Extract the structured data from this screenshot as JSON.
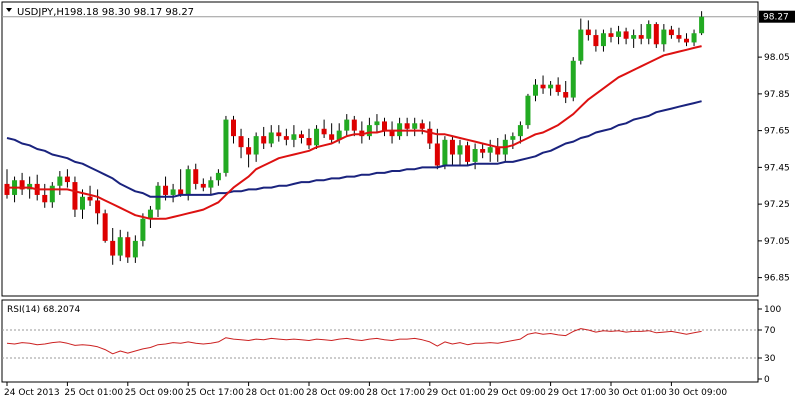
{
  "header": {
    "symbol": "USDJPY,H1",
    "ohlc": "98.18 98.30 98.17 98.27"
  },
  "price_panel": {
    "current_price_label": "98.27",
    "y_ticks": [
      "98.27",
      "98.05",
      "97.85",
      "97.65",
      "97.45",
      "97.25",
      "97.05",
      "96.85"
    ]
  },
  "rsi_panel": {
    "label": "RSI(14) 68.2074",
    "y_ticks": [
      "100",
      "70",
      "30",
      "0"
    ]
  },
  "x_ticks": [
    "24 Oct 2013",
    "25 Oct 01:00",
    "25 Oct 09:00",
    "25 Oct 17:00",
    "28 Oct 01:00",
    "28 Oct 09:00",
    "28 Oct 17:00",
    "29 Oct 01:00",
    "29 Oct 09:00",
    "29 Oct 17:00",
    "30 Oct 01:00",
    "30 Oct 09:00"
  ],
  "colors": {
    "up_candle": "#22aa22",
    "down_candle": "#dd0000",
    "ma_fast": "#dd1111",
    "ma_slow": "#1a237e",
    "rsi_line": "#cc2222",
    "frame": "#000000"
  },
  "chart_data": {
    "type": "candlestick",
    "ylim": [
      96.75,
      98.35
    ],
    "rsi_ylim": [
      0,
      100
    ],
    "candles": [
      [
        97.36,
        97.44,
        97.28,
        97.3
      ],
      [
        97.3,
        97.4,
        97.26,
        97.38
      ],
      [
        97.38,
        97.42,
        97.3,
        97.33
      ],
      [
        97.33,
        97.4,
        97.28,
        97.36
      ],
      [
        97.36,
        97.41,
        97.27,
        97.3
      ],
      [
        97.3,
        97.36,
        97.23,
        97.26
      ],
      [
        97.26,
        97.37,
        97.23,
        97.35
      ],
      [
        97.35,
        97.43,
        97.3,
        97.4
      ],
      [
        97.4,
        97.44,
        97.34,
        97.37
      ],
      [
        97.37,
        97.4,
        97.18,
        97.22
      ],
      [
        97.22,
        97.33,
        97.17,
        97.29
      ],
      [
        97.29,
        97.35,
        97.24,
        97.27
      ],
      [
        97.27,
        97.33,
        97.14,
        97.2
      ],
      [
        97.2,
        97.22,
        97.04,
        97.05
      ],
      [
        97.05,
        97.12,
        96.92,
        96.97
      ],
      [
        96.97,
        97.11,
        96.94,
        97.07
      ],
      [
        97.07,
        97.1,
        96.93,
        96.96
      ],
      [
        96.96,
        97.08,
        96.93,
        97.05
      ],
      [
        97.05,
        97.2,
        97.02,
        97.17
      ],
      [
        97.17,
        97.24,
        97.12,
        97.22
      ],
      [
        97.22,
        97.37,
        97.18,
        97.35
      ],
      [
        97.35,
        97.4,
        97.27,
        97.3
      ],
      [
        97.3,
        97.36,
        97.26,
        97.33
      ],
      [
        97.33,
        97.44,
        97.29,
        97.3
      ],
      [
        97.3,
        97.46,
        97.27,
        97.44
      ],
      [
        97.44,
        97.47,
        97.33,
        97.36
      ],
      [
        97.36,
        97.39,
        97.32,
        97.34
      ],
      [
        97.34,
        97.4,
        97.3,
        97.38
      ],
      [
        97.38,
        97.44,
        97.35,
        97.42
      ],
      [
        97.42,
        97.73,
        97.4,
        97.71
      ],
      [
        97.71,
        97.73,
        97.58,
        97.62
      ],
      [
        97.62,
        97.66,
        97.5,
        97.56
      ],
      [
        97.56,
        97.61,
        97.45,
        97.52
      ],
      [
        97.52,
        97.64,
        97.48,
        97.62
      ],
      [
        97.62,
        97.67,
        97.55,
        97.58
      ],
      [
        97.58,
        97.68,
        97.56,
        97.64
      ],
      [
        97.64,
        97.68,
        97.59,
        97.62
      ],
      [
        97.62,
        97.66,
        97.57,
        97.6
      ],
      [
        97.6,
        97.68,
        97.56,
        97.63
      ],
      [
        97.63,
        97.65,
        97.58,
        97.61
      ],
      [
        97.61,
        97.66,
        97.55,
        97.57
      ],
      [
        97.57,
        97.68,
        97.55,
        97.66
      ],
      [
        97.66,
        97.71,
        97.61,
        97.63
      ],
      [
        97.63,
        97.69,
        97.58,
        97.6
      ],
      [
        97.6,
        97.69,
        97.58,
        97.65
      ],
      [
        97.65,
        97.74,
        97.62,
        97.71
      ],
      [
        97.71,
        97.73,
        97.62,
        97.65
      ],
      [
        97.65,
        97.7,
        97.58,
        97.62
      ],
      [
        97.62,
        97.72,
        97.6,
        97.68
      ],
      [
        97.68,
        97.74,
        97.64,
        97.7
      ],
      [
        97.7,
        97.72,
        97.62,
        97.65
      ],
      [
        97.65,
        97.7,
        97.58,
        97.62
      ],
      [
        97.62,
        97.72,
        97.6,
        97.69
      ],
      [
        97.69,
        97.72,
        97.62,
        97.66
      ],
      [
        97.66,
        97.72,
        97.62,
        97.69
      ],
      [
        97.69,
        97.71,
        97.63,
        97.66
      ],
      [
        97.66,
        97.7,
        97.55,
        97.58
      ],
      [
        97.58,
        97.66,
        97.44,
        97.46
      ],
      [
        97.46,
        97.62,
        97.44,
        97.6
      ],
      [
        97.6,
        97.62,
        97.46,
        97.52
      ],
      [
        97.52,
        97.6,
        97.46,
        97.57
      ],
      [
        97.57,
        97.59,
        97.46,
        97.48
      ],
      [
        97.48,
        97.58,
        97.44,
        97.55
      ],
      [
        97.55,
        97.58,
        97.5,
        97.53
      ],
      [
        97.53,
        97.6,
        97.48,
        97.56
      ],
      [
        97.56,
        97.61,
        97.48,
        97.52
      ],
      [
        97.52,
        97.63,
        97.48,
        97.6
      ],
      [
        97.6,
        97.64,
        97.55,
        97.62
      ],
      [
        97.62,
        97.7,
        97.58,
        97.68
      ],
      [
        97.68,
        97.85,
        97.66,
        97.84
      ],
      [
        97.84,
        97.93,
        97.81,
        97.9
      ],
      [
        97.9,
        97.95,
        97.85,
        97.88
      ],
      [
        97.88,
        97.92,
        97.84,
        97.9
      ],
      [
        97.9,
        97.94,
        97.84,
        97.86
      ],
      [
        97.86,
        97.92,
        97.8,
        97.83
      ],
      [
        97.83,
        98.05,
        97.81,
        98.03
      ],
      [
        98.03,
        98.26,
        98.01,
        98.2
      ],
      [
        98.2,
        98.25,
        98.14,
        98.17
      ],
      [
        98.17,
        98.2,
        98.08,
        98.11
      ],
      [
        98.11,
        98.2,
        98.08,
        98.18
      ],
      [
        98.18,
        98.21,
        98.13,
        98.16
      ],
      [
        98.16,
        98.22,
        98.12,
        98.19
      ],
      [
        98.19,
        98.21,
        98.12,
        98.15
      ],
      [
        98.15,
        98.2,
        98.1,
        98.17
      ],
      [
        98.17,
        98.23,
        98.12,
        98.15
      ],
      [
        98.15,
        98.25,
        98.12,
        98.23
      ],
      [
        98.23,
        98.24,
        98.1,
        98.12
      ],
      [
        98.12,
        98.23,
        98.08,
        98.2
      ],
      [
        98.2,
        98.22,
        98.15,
        98.17
      ],
      [
        98.17,
        98.21,
        98.13,
        98.15
      ],
      [
        98.15,
        98.18,
        98.11,
        98.13
      ],
      [
        98.13,
        98.2,
        98.11,
        98.18
      ],
      [
        98.18,
        98.3,
        98.17,
        98.27
      ]
    ],
    "ma_fast": [
      97.34,
      97.34,
      97.34,
      97.34,
      97.33,
      97.33,
      97.33,
      97.33,
      97.33,
      97.32,
      97.31,
      97.3,
      97.29,
      97.27,
      97.25,
      97.23,
      97.21,
      97.19,
      97.18,
      97.17,
      97.17,
      97.17,
      97.18,
      97.19,
      97.2,
      97.21,
      97.22,
      97.24,
      97.26,
      97.3,
      97.34,
      97.37,
      97.4,
      97.44,
      97.46,
      97.48,
      97.5,
      97.51,
      97.52,
      97.53,
      97.54,
      97.56,
      97.57,
      97.58,
      97.6,
      97.62,
      97.63,
      97.63,
      97.64,
      97.64,
      97.65,
      97.65,
      97.65,
      97.65,
      97.65,
      97.65,
      97.64,
      97.63,
      97.63,
      97.62,
      97.61,
      97.6,
      97.59,
      97.58,
      97.57,
      97.56,
      97.56,
      97.57,
      97.59,
      97.61,
      97.63,
      97.64,
      97.66,
      97.68,
      97.71,
      97.74,
      97.78,
      97.82,
      97.85,
      97.88,
      97.91,
      97.94,
      97.96,
      97.98,
      98.0,
      98.02,
      98.04,
      98.06,
      98.07,
      98.08,
      98.09,
      98.1,
      98.11
    ],
    "ma_slow": [
      97.61,
      97.6,
      97.58,
      97.57,
      97.55,
      97.54,
      97.52,
      97.51,
      97.5,
      97.48,
      97.47,
      97.45,
      97.43,
      97.41,
      97.39,
      97.36,
      97.34,
      97.32,
      97.31,
      97.29,
      97.29,
      97.29,
      97.29,
      97.3,
      97.3,
      97.3,
      97.3,
      97.3,
      97.31,
      97.31,
      97.32,
      97.32,
      97.33,
      97.33,
      97.34,
      97.34,
      97.35,
      97.35,
      97.36,
      97.37,
      97.37,
      97.38,
      97.38,
      97.39,
      97.39,
      97.4,
      97.4,
      97.41,
      97.41,
      97.42,
      97.42,
      97.43,
      97.43,
      97.44,
      97.44,
      97.45,
      97.45,
      97.45,
      97.46,
      97.46,
      97.46,
      97.46,
      97.47,
      97.47,
      97.47,
      97.47,
      97.48,
      97.48,
      97.49,
      97.5,
      97.51,
      97.53,
      97.54,
      97.56,
      97.58,
      97.59,
      97.61,
      97.62,
      97.64,
      97.65,
      97.66,
      97.68,
      97.69,
      97.71,
      97.72,
      97.73,
      97.75,
      97.76,
      97.77,
      97.78,
      97.79,
      97.8,
      97.81
    ],
    "rsi": [
      51,
      50,
      52,
      51,
      49,
      50,
      52,
      53,
      51,
      48,
      49,
      48,
      46,
      42,
      36,
      40,
      37,
      40,
      43,
      45,
      49,
      50,
      52,
      51,
      53,
      51,
      50,
      51,
      53,
      59,
      57,
      56,
      55,
      57,
      56,
      58,
      57,
      56,
      57,
      56,
      55,
      57,
      56,
      55,
      57,
      58,
      56,
      55,
      57,
      58,
      56,
      55,
      57,
      57,
      58,
      56,
      53,
      47,
      53,
      50,
      52,
      49,
      51,
      51,
      52,
      51,
      53,
      55,
      57,
      64,
      66,
      64,
      65,
      63,
      62,
      68,
      72,
      70,
      67,
      69,
      68,
      69,
      67,
      68,
      68,
      69,
      66,
      67,
      68,
      66,
      64,
      66,
      68
    ]
  }
}
